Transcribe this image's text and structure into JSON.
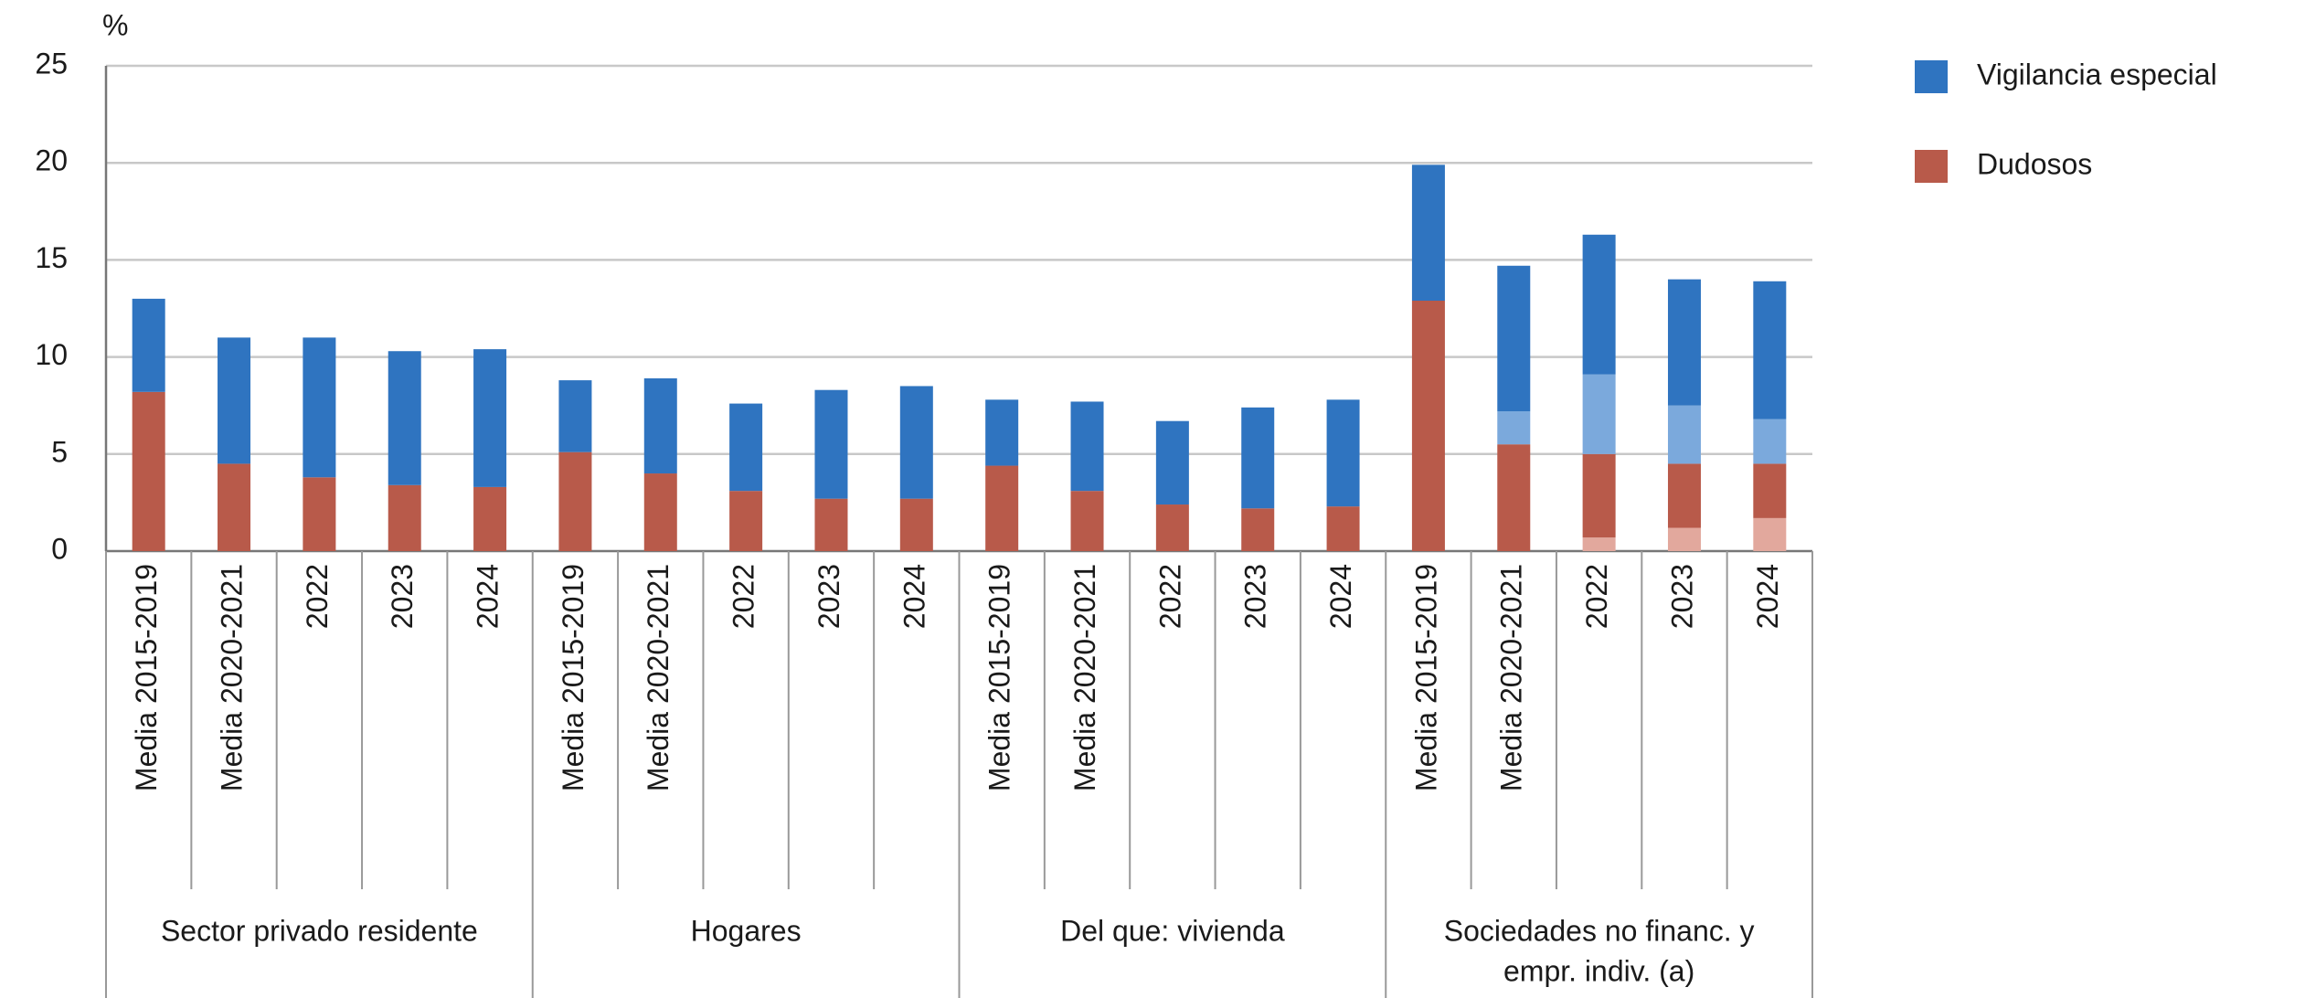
{
  "chart_data": {
    "type": "bar",
    "stacked": true,
    "y_label": "%",
    "groups": [
      {
        "name": "Sector privado residente",
        "categories": [
          "Media 2015-2019",
          "Media 2020-2021",
          "2022",
          "2023",
          "2024"
        ]
      },
      {
        "name": "Hogares",
        "categories": [
          "Media 2015-2019",
          "Media 2020-2021",
          "2022",
          "2023",
          "2024"
        ]
      },
      {
        "name": "Del que: vivienda",
        "categories": [
          "Media 2015-2019",
          "Media 2020-2021",
          "2022",
          "2023",
          "2024"
        ]
      },
      {
        "name": [
          "Sociedades no financ. y",
          "empr. indiv. (a)"
        ],
        "categories": [
          "Media 2015-2019",
          "Media 2020-2021",
          "2022",
          "2023",
          "2024"
        ]
      }
    ],
    "series": [
      {
        "color": "#e2a89d",
        "values": [
          null,
          null,
          null,
          null,
          null,
          null,
          null,
          null,
          null,
          null,
          null,
          null,
          null,
          null,
          null,
          null,
          null,
          0.7,
          1.2,
          1.7
        ]
      },
      {
        "name": "Dudosos",
        "color": "#b85a4a",
        "values": [
          8.2,
          4.5,
          3.8,
          3.4,
          3.3,
          5.1,
          4.0,
          3.1,
          2.7,
          2.7,
          4.4,
          3.1,
          2.4,
          2.2,
          2.3,
          12.9,
          5.5,
          4.3,
          3.3,
          2.8
        ]
      },
      {
        "color": "#7ba9dc",
        "values": [
          null,
          null,
          null,
          null,
          null,
          null,
          null,
          null,
          null,
          null,
          null,
          null,
          null,
          null,
          null,
          null,
          1.7,
          4.1,
          3.0,
          2.3
        ]
      },
      {
        "name": "Vigilancia especial",
        "color": "#2f74c0",
        "values": [
          4.8,
          6.5,
          7.2,
          6.9,
          7.1,
          3.7,
          4.9,
          4.5,
          5.6,
          5.8,
          3.4,
          4.6,
          4.3,
          5.2,
          5.5,
          7.0,
          7.5,
          7.2,
          6.5,
          7.1
        ]
      }
    ],
    "ylim": [
      0,
      25
    ],
    "yticks": [
      0,
      5,
      10,
      15,
      20,
      25
    ],
    "grid": true,
    "legend": "right"
  }
}
